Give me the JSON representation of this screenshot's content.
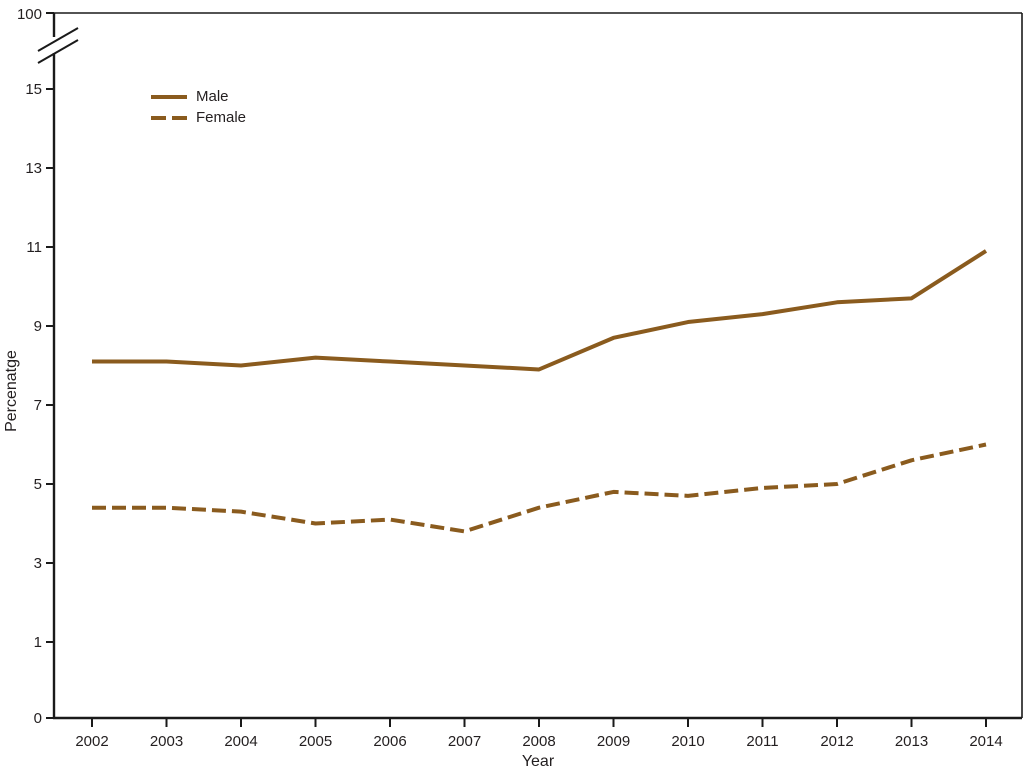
{
  "chart_data": {
    "type": "line",
    "title": "",
    "xlabel": "Year",
    "ylabel": "Percenatge",
    "x": [
      2002,
      2003,
      2004,
      2005,
      2006,
      2007,
      2008,
      2009,
      2010,
      2011,
      2012,
      2013,
      2014
    ],
    "series": [
      {
        "name": "Male",
        "line_style": "solid",
        "values": [
          8.1,
          8.1,
          8.0,
          8.2,
          8.1,
          8.0,
          7.9,
          8.7,
          9.1,
          9.3,
          9.6,
          9.7,
          10.9
        ]
      },
      {
        "name": "Female",
        "line_style": "dashed",
        "values": [
          4.4,
          4.4,
          4.3,
          4.0,
          4.1,
          3.8,
          4.4,
          4.8,
          4.7,
          4.9,
          5.0,
          5.6,
          6.0
        ]
      }
    ],
    "y_ticks": [
      0,
      1,
      3,
      5,
      7,
      9,
      11,
      13,
      15
    ],
    "y_break_top_label": "100",
    "y_axis_break": true,
    "grid": false,
    "legend_position": "upper-left",
    "line_color": "#8a5b1e",
    "axis_color": "#1a1a1a",
    "text_color": "#231f20"
  }
}
